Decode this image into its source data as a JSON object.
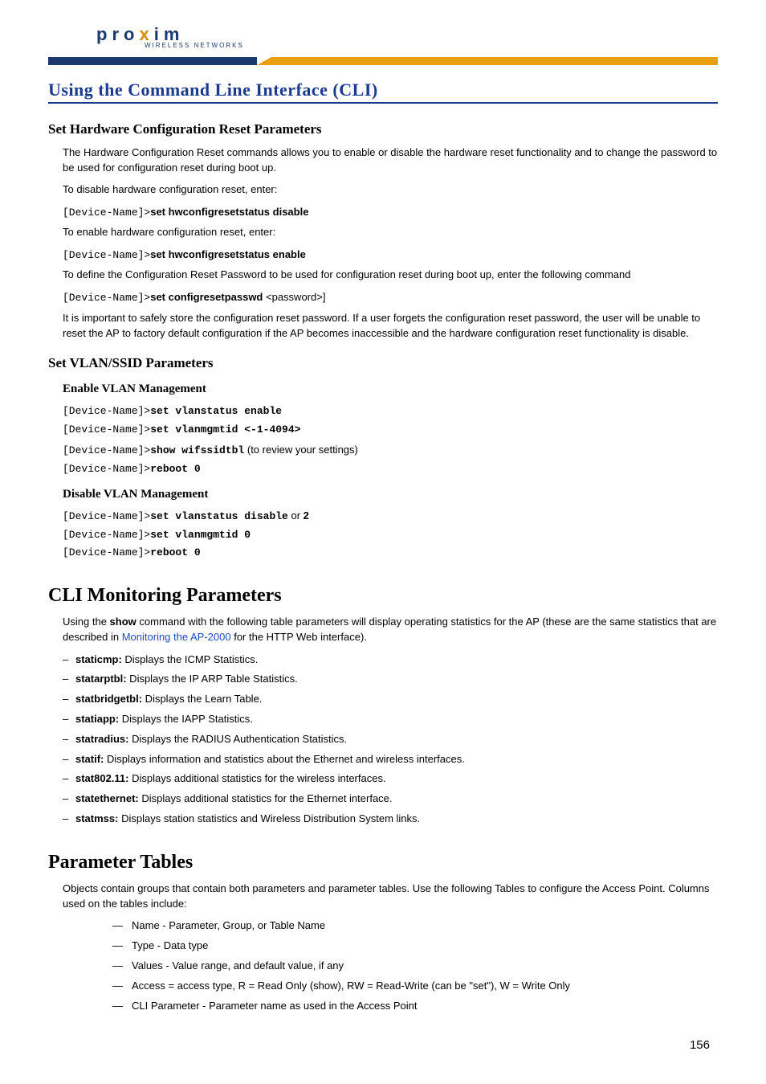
{
  "logo": {
    "brand": "pro",
    "x": "x",
    "brand2": "im",
    "sub": "WIRELESS NETWORKS"
  },
  "header_bar": {
    "blue": "#1a3a6e",
    "orange": "#e8a012"
  },
  "page_title": "Using the Command Line Interface (CLI)",
  "h2_hwreset": "Set Hardware Configuration Reset Parameters",
  "hw_p1": "The Hardware Configuration Reset commands allows you to enable or disable the hardware reset functionality and to change the password to be used for configuration reset during boot up.",
  "hw_p2": "To disable hardware configuration reset, enter:",
  "device_prompt": "[Device-Name]>",
  "hw_cmd1": "set hwconfigresetstatus disable",
  "hw_p3": "To enable hardware configuration reset, enter:",
  "hw_cmd2": "set hwconfigresetstatus enable",
  "hw_p4": "To define the Configuration Reset Password to be used for configuration reset during boot up, enter the following command",
  "hw_cmd3": "set configresetpasswd ",
  "hw_cmd3_arg": "<password>]",
  "hw_p5": "It is important to safely store the configuration reset password. If a user forgets the configuration reset password, the user will be unable to reset the AP to factory default configuration if the AP becomes inaccessible and the hardware configuration reset functionality is disable.",
  "h2_vlan": "Set VLAN/SSID Parameters",
  "h3_vlan_en": "Enable VLAN Management",
  "vlan_en_cmd1": "set vlanstatus enable",
  "vlan_en_cmd2": "set vlanmgmtid <-1-4094>",
  "vlan_en_cmd3": "show wifssidtbl",
  "vlan_en_note": " (to review your settings)",
  "vlan_en_cmd4": "reboot 0",
  "h3_vlan_dis": "Disable VLAN Management",
  "vlan_dis_cmd1": "set vlanstatus disable",
  "vlan_dis_or": " or ",
  "vlan_dis_or2": "2",
  "vlan_dis_cmd2": "set vlanmgmtid 0",
  "vlan_dis_cmd3": "reboot 0",
  "h2_cli_mon": "CLI Monitoring Parameters",
  "cli_mon_p_a": "Using the ",
  "cli_mon_p_show": "show",
  "cli_mon_p_b": " command with the following table parameters will display operating statistics for the AP (these are the same statistics that are described in ",
  "cli_mon_link": "Monitoring the AP-2000",
  "cli_mon_p_c": " for the HTTP Web interface).",
  "mon_items": [
    {
      "k": "staticmp:",
      "v": " Displays the ICMP Statistics."
    },
    {
      "k": "statarptbl:",
      "v": " Displays the IP ARP Table Statistics."
    },
    {
      "k": "statbridgetbl:",
      "v": " Displays the Learn Table."
    },
    {
      "k": "statiapp:",
      "v": " Displays the IAPP Statistics."
    },
    {
      "k": "statradius:",
      "v": " Displays the RADIUS Authentication Statistics."
    },
    {
      "k": "statif:",
      "v": " Displays information and statistics about the Ethernet and wireless interfaces."
    },
    {
      "k": "stat802.11:",
      "v": " Displays additional statistics for the wireless interfaces."
    },
    {
      "k": "statethernet:",
      "v": " Displays additional statistics for the Ethernet interface."
    },
    {
      "k": "statmss:",
      "v": " Displays station statistics and Wireless Distribution System links."
    }
  ],
  "h2_param_tables": "Parameter Tables",
  "pt_p1": "Objects contain groups that contain both parameters and parameter tables. Use the following Tables to configure the Access Point. Columns used on the tables include:",
  "pt_items": [
    "Name - Parameter, Group, or Table Name",
    "Type - Data type",
    "Values - Value range, and default value, if any",
    "Access = access type, R = Read Only (show), RW = Read-Write (can be \"set\"), W = Write Only",
    "CLI Parameter - Parameter name as used in the Access Point"
  ],
  "page_number": "156"
}
